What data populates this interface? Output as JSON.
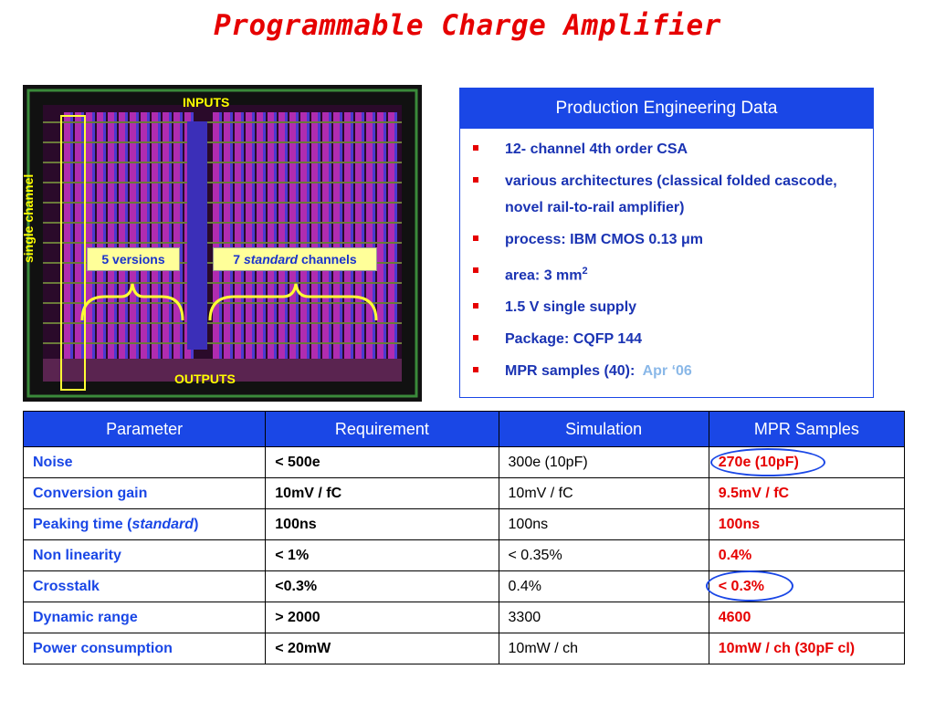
{
  "title": "Programmable Charge Amplifier",
  "chip": {
    "inputs_label": "INPUTS",
    "outputs_label": "OUTPUTS",
    "single_channel_label": "single channel",
    "versions_label": "5 versions",
    "standard_prefix": "7 ",
    "standard_italic": "standard",
    "standard_suffix": " channels"
  },
  "panel": {
    "heading": "Production Engineering Data",
    "items": [
      {
        "text": "12- channel 4th order CSA"
      },
      {
        "text": "various architectures (classical folded cascode, novel rail-to-rail amplifier)"
      },
      {
        "text": "process:   IBM CMOS 0.13 μm"
      },
      {
        "text": "area:   3 mm",
        "sup": "2"
      },
      {
        "text": "1.5 V single supply"
      },
      {
        "text": "Package: CQFP 144"
      },
      {
        "text": "MPR samples (40):  ",
        "extra": "Apr ‘06"
      }
    ]
  },
  "table": {
    "headers": [
      "Parameter",
      "Requirement",
      "Simulation",
      "MPR Samples"
    ],
    "rows": [
      {
        "param": "Noise",
        "req": "< 500e",
        "sim": "300e (10pF)",
        "mpr": "270e (10pF)"
      },
      {
        "param": "Conversion gain",
        "req": "10mV / fC",
        "sim": "10mV / fC",
        "mpr": "9.5mV / fC"
      },
      {
        "param_prefix": "Peaking time (",
        "param_italic": "standard",
        "param_suffix": ")",
        "req": "100ns",
        "sim": "100ns",
        "mpr": "100ns"
      },
      {
        "param": "Non linearity",
        "req": "< 1%",
        "sim": "< 0.35%",
        "mpr": "0.4%"
      },
      {
        "param": "Crosstalk",
        "req": "<0.3%",
        "sim": "0.4%",
        "mpr": "< 0.3%"
      },
      {
        "param": "Dynamic range",
        "req": "> 2000",
        "sim": "3300",
        "mpr": "4600"
      },
      {
        "param": "Power consumption",
        "req": "< 20mW",
        "sim": "10mW / ch",
        "mpr": "10mW / ch (30pF cl)"
      }
    ]
  },
  "colors": {
    "accent_blue": "#1a47e6",
    "title_red": "#e60000",
    "label_yellow": "#ffff00",
    "box_fill": "#ffff99"
  }
}
